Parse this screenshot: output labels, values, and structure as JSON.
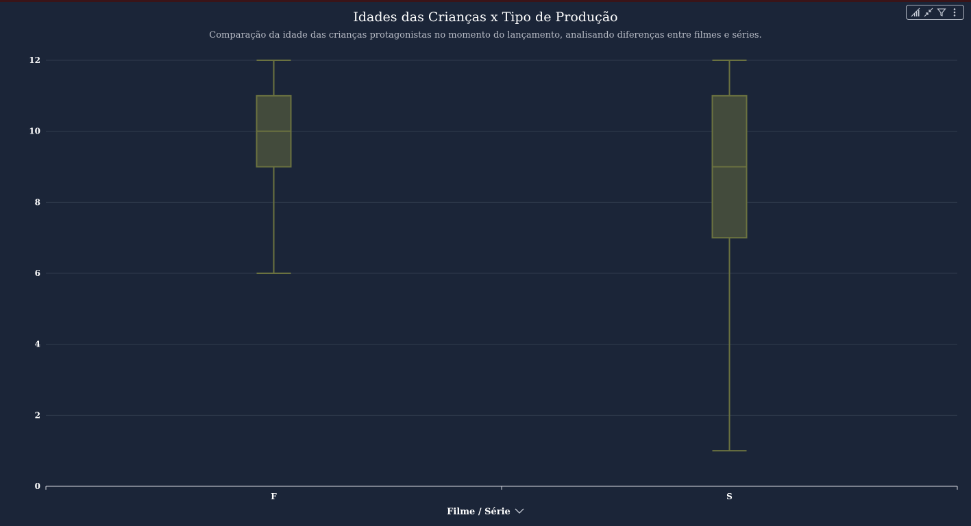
{
  "header": {
    "title": "Idades das Crianças x Tipo de Produção",
    "subtitle": "Comparação da idade das crianças protagonistas no momento do lançamento, analisando diferenças entre filmes e séries."
  },
  "toolbar": {
    "icons": [
      "analytics-icon",
      "collapse-icon",
      "filter-icon",
      "more-options-icon"
    ]
  },
  "colors": {
    "background": "#1b2538",
    "box_fill": "#434b3c",
    "box_stroke": "#6b7240",
    "grid": "#323c4e"
  },
  "chart_data": {
    "type": "box",
    "xlabel": "Filme / Série",
    "ylabel": "",
    "ylim": [
      0,
      12
    ],
    "yticks": [
      0,
      2,
      4,
      6,
      8,
      10,
      12
    ],
    "grid": true,
    "categories": [
      "F",
      "S"
    ],
    "boxes": [
      {
        "category": "F",
        "min": 6,
        "q1": 9,
        "median": 10,
        "q3": 11,
        "max": 12
      },
      {
        "category": "S",
        "min": 1,
        "q1": 7,
        "median": 9,
        "q3": 11,
        "max": 12
      }
    ]
  }
}
